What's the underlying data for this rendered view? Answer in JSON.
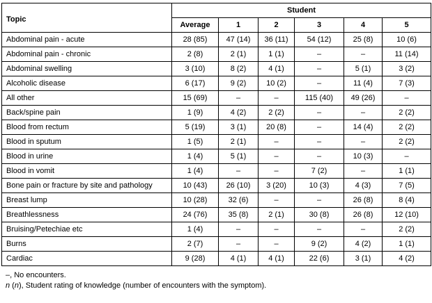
{
  "table": {
    "topic_header": "Topic",
    "student_header": "Student",
    "columns": [
      "Average",
      "1",
      "2",
      "3",
      "4",
      "5"
    ],
    "rows": [
      {
        "topic": "Abdominal pain - acute",
        "values": [
          "28 (85)",
          "47 (14)",
          "36 (11)",
          "54 (12)",
          "25 (8)",
          "10 (6)"
        ]
      },
      {
        "topic": "Abdominal pain - chronic",
        "values": [
          "2 (8)",
          "2 (1)",
          "1 (1)",
          "–",
          "–",
          "11 (14)"
        ]
      },
      {
        "topic": "Abdominal swelling",
        "values": [
          "3 (10)",
          "8 (2)",
          "4 (1)",
          "–",
          "5 (1)",
          "3 (2)"
        ]
      },
      {
        "topic": "Alcoholic disease",
        "values": [
          "6 (17)",
          "9 (2)",
          "10 (2)",
          "–",
          "11 (4)",
          "7 (3)"
        ]
      },
      {
        "topic": "All other",
        "values": [
          "15 (69)",
          "–",
          "–",
          "115 (40)",
          "49 (26)",
          "–"
        ]
      },
      {
        "topic": "Back/spine pain",
        "values": [
          "1 (9)",
          "4 (2)",
          "2 (2)",
          "–",
          "–",
          "2 (2)"
        ]
      },
      {
        "topic": "Blood from rectum",
        "values": [
          "5 (19)",
          "3 (1)",
          "20 (8)",
          "–",
          "14 (4)",
          "2 (2)"
        ]
      },
      {
        "topic": "Blood in sputum",
        "values": [
          "1 (5)",
          "2 (1)",
          "–",
          "–",
          "–",
          "2 (2)"
        ]
      },
      {
        "topic": "Blood in urine",
        "values": [
          "1 (4)",
          "5 (1)",
          "–",
          "–",
          "10 (3)",
          "–"
        ]
      },
      {
        "topic": "Blood in vomit",
        "values": [
          "1 (4)",
          "–",
          "–",
          "7 (2)",
          "–",
          "1 (1)"
        ]
      },
      {
        "topic": "Bone pain or fracture by site and pathology",
        "values": [
          "10 (43)",
          "26 (10)",
          "3 (20)",
          "10 (3)",
          "4 (3)",
          "7 (5)"
        ]
      },
      {
        "topic": "Breast lump",
        "values": [
          "10 (28)",
          "32 (6)",
          "–",
          "–",
          "26 (8)",
          "8 (4)"
        ]
      },
      {
        "topic": "Breathlessness",
        "values": [
          "24 (76)",
          "35 (8)",
          "2 (1)",
          "30 (8)",
          "26 (8)",
          "12 (10)"
        ]
      },
      {
        "topic": "Bruising/Petechiae etc",
        "values": [
          "1 (4)",
          "–",
          "–",
          "–",
          "–",
          "2 (2)"
        ]
      },
      {
        "topic": "Burns",
        "values": [
          "2 (7)",
          "–",
          "–",
          "9 (2)",
          "4 (2)",
          "1 (1)"
        ]
      },
      {
        "topic": "Cardiac",
        "values": [
          "9 (28)",
          "4 (1)",
          "4 (1)",
          "22 (6)",
          "3 (1)",
          "4 (2)"
        ]
      }
    ]
  },
  "footnotes": {
    "line1": "–, No encounters.",
    "line2_italic1": "n",
    "line2_mid": " (",
    "line2_italic2": "n",
    "line2_rest": "), Student rating of knowledge (number of encounters with the symptom)."
  }
}
